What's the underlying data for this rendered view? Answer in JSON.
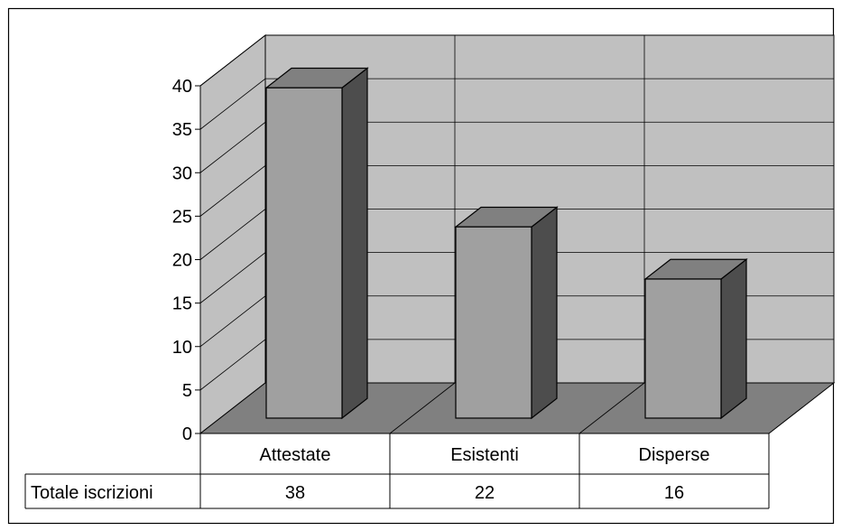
{
  "chart_data": {
    "type": "bar",
    "categories": [
      "Attestate",
      "Esistenti",
      "Disperse"
    ],
    "series": [
      {
        "name": "Totale iscrizioni",
        "values": [
          38,
          22,
          16
        ]
      }
    ],
    "yticks": [
      "0",
      "5",
      "10",
      "15",
      "20",
      "25",
      "30",
      "35",
      "40"
    ],
    "ylim": [
      0,
      40
    ],
    "grid": true,
    "legend": "none",
    "data_table": true,
    "colors": {
      "wall": "#c0c0c0",
      "floor": "#808080",
      "side_wall": "#c0c0c0",
      "bar_front": "#a0a0a0",
      "bar_top": "#808080",
      "bar_side": "#4d4d4d",
      "grid": "#000000"
    }
  }
}
